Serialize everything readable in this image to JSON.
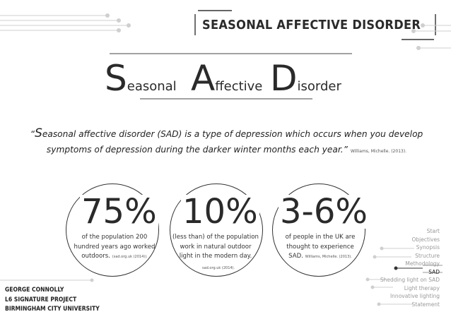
{
  "header": {
    "title": "SEASONAL AFFECTIVE DISORDER"
  },
  "title": {
    "w1_cap": "S",
    "w1_rest": "easonal",
    "w2_cap": "A",
    "w2_rest": "ffective",
    "w3_cap": "D",
    "w3_rest": "isorder"
  },
  "quote": {
    "open": "“",
    "cap": "S",
    "body": "easonal affective disorder (SAD) is a type of depression which occurs when you develop symptoms of depression during the darker winter months each year.”",
    "citation": "Williams, Michelle. (2013)."
  },
  "stats": [
    {
      "value": "75%",
      "desc": "of the population 200 hundred years ago worked outdoors.",
      "ref": "(sad.org.uk (2014))."
    },
    {
      "value": "10%",
      "desc": "(less than) of the population work in natural outdoor light in the modern day.",
      "ref": "sad.org.uk (2014)."
    },
    {
      "value": "3-6%",
      "desc": "of people in the UK are thought to experience SAD.",
      "ref": "Williams, Michelle. (2013)."
    }
  ],
  "nav": [
    {
      "label": "Start"
    },
    {
      "label": "Objectives"
    },
    {
      "label": "Synopsis"
    },
    {
      "label": "Structure"
    },
    {
      "label": "Methodology"
    },
    {
      "label": "SAD"
    },
    {
      "label": "Shedding light on SAD"
    },
    {
      "label": "Light therapy"
    },
    {
      "label": "Innovative lighting"
    },
    {
      "label": "Statement"
    }
  ],
  "author": {
    "name": "GEORGE CONNOLLY",
    "project": "L6 SIGNATURE PROJECT",
    "university": "BIRMINGHAM CITY UNIVERSITY"
  }
}
